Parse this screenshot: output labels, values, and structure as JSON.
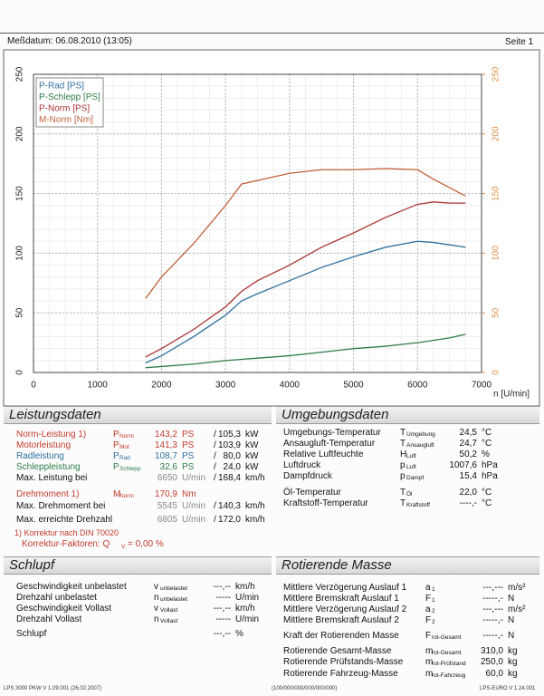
{
  "header": {
    "date": "Meßdatum: 06.08.2010 (13:05)",
    "page": "Seite 1"
  },
  "chart_data": {
    "type": "line",
    "x_label": "n [U/min]",
    "x": [
      1750,
      2000,
      2500,
      3000,
      3250,
      3500,
      4000,
      4500,
      5000,
      5500,
      6000,
      6250,
      6500,
      6750
    ],
    "series": [
      {
        "name": "P-Rad [PS]",
        "color": "#2e6f9e",
        "values": [
          8,
          14,
          30,
          48,
          60,
          66,
          77,
          88,
          97,
          105,
          110,
          109,
          107,
          105
        ]
      },
      {
        "name": "P-Schlepp [PS]",
        "color": "#2e7d4a",
        "values": [
          4,
          5,
          7,
          10,
          11,
          12,
          14,
          17,
          20,
          22,
          25,
          27,
          29,
          32
        ]
      },
      {
        "name": "P-Norm [PS]",
        "color": "#a83232",
        "values": [
          13,
          20,
          36,
          55,
          68,
          77,
          90,
          105,
          117,
          130,
          141,
          143,
          142,
          142
        ]
      },
      {
        "name": "M-Norm [Nm]",
        "color": "#c0603a",
        "axis": "y2",
        "values": [
          62,
          80,
          108,
          140,
          158,
          161,
          167,
          170,
          170,
          171,
          170,
          162,
          155,
          148
        ]
      }
    ],
    "xlim": [
      0,
      7000
    ],
    "xticks": [
      0,
      1000,
      2000,
      3000,
      4000,
      5000,
      6000,
      7000
    ],
    "ylim": [
      0,
      250
    ],
    "yticks": [
      0,
      50,
      100,
      150,
      200,
      250
    ],
    "y2lim": [
      0,
      250
    ],
    "y2ticks": [
      0,
      50,
      100,
      150,
      200,
      250
    ],
    "y2_color": "#e0904a",
    "grid": true,
    "legend": "upper left"
  },
  "leistungsdaten": {
    "title": "Leistungsdaten",
    "rows": [
      {
        "label": "Norm-Leistung 1)",
        "color": "#c0392b",
        "sym": "P",
        "sub": "Norm",
        "v1": "143,2",
        "u1": "PS",
        "sep": "/",
        "v2": "105,3",
        "u2": "kW"
      },
      {
        "label": "Motorleistung",
        "color": "#c0392b",
        "sym": "P",
        "sub": "Mot",
        "v1": "141,3",
        "u1": "PS",
        "sep": "/",
        "v2": "103,9",
        "u2": "kW"
      },
      {
        "label": "Radleistung",
        "color": "#2e6f9e",
        "sym": "P",
        "sub": "Rad",
        "v1": "108,7",
        "u1": "PS",
        "sep": "/",
        "v2": "80,0",
        "u2": "kW"
      },
      {
        "label": "Schleppleistung",
        "color": "#2e7d4a",
        "sym": "P",
        "sub": "Schlepp",
        "v1": "32,6",
        "u1": "PS",
        "sep": "/",
        "v2": "24,0",
        "u2": "kW"
      },
      {
        "label": "Max. Leistung bei",
        "v1": "6650",
        "u1": "U/min",
        "sep": "/",
        "v2": "168,4",
        "u2": "km/h"
      },
      {
        "label": "Drehmoment 1)",
        "color": "#c0392b",
        "sym": "M",
        "sub": "Norm",
        "v1": "170,9",
        "u1": "Nm"
      },
      {
        "label": "Max. Drehmoment bei",
        "v1": "5545",
        "u1": "U/min",
        "sep": "/",
        "v2": "140,3",
        "u2": "km/h"
      },
      {
        "label": "Max. erreichte Drehzahl",
        "v1": "6805",
        "u1": "U/min",
        "sep": "/",
        "v2": "172,0",
        "u2": "km/h"
      }
    ],
    "note": "1) Korrektur nach DIN 70020",
    "factor_label": "Korrektur-Faktoren: Q",
    "factor_sub": "V",
    "factor_value": "= 0,00 %"
  },
  "umgebungsdaten": {
    "title": "Umgebungsdaten",
    "rows": [
      {
        "label": "Umgebungs-Temperatur",
        "sym": "T",
        "sub": "Umgebung",
        "val": "24,5",
        "unit": "°C"
      },
      {
        "label": "Ansaugluft-Temperatur",
        "sym": "T",
        "sub": "Ansaugluft",
        "val": "24,7",
        "unit": "°C"
      },
      {
        "label": "Relative Luftfeuchte",
        "sym": "H",
        "sub": "Luft",
        "val": "50,2",
        "unit": "%"
      },
      {
        "label": "Luftdruck",
        "sym": "p",
        "sub": "Luft",
        "val": "1007,6",
        "unit": "hPa"
      },
      {
        "label": "Dampfdruck",
        "sym": "p",
        "sub": "Dampf",
        "val": "15,4",
        "unit": "hPa"
      },
      {
        "label": "Öl-Temperatur",
        "sym": "T",
        "sub": "Öl",
        "val": "22,0",
        "unit": "°C"
      },
      {
        "label": "Kraftstoff-Temperatur",
        "sym": "T",
        "sub": "Kraftstoff",
        "val": "----,-",
        "unit": "°C"
      }
    ]
  },
  "schlupf": {
    "title": "Schlupf",
    "rows": [
      {
        "label": "Geschwindigkeit unbelastet",
        "sym": "v",
        "sub": "unbelastet",
        "val": "---,--",
        "unit": "km/h"
      },
      {
        "label": "Drehzahl unbelastet",
        "sym": "n",
        "sub": "unbelastet",
        "val": "-----",
        "unit": "U/min"
      },
      {
        "label": "Geschwindigkeit Vollast",
        "sym": "v",
        "sub": "Vollast",
        "val": "---,--",
        "unit": "km/h"
      },
      {
        "label": "Drehzahl Vollast",
        "sym": "n",
        "sub": "Vollast",
        "val": "-----",
        "unit": "U/min"
      },
      {
        "label": "Schlupf",
        "val": "---,--",
        "unit": "%"
      }
    ]
  },
  "rotierende_masse": {
    "title": "Rotierende Masse",
    "rows": [
      {
        "label": "Mittlere Verzögerung Auslauf 1",
        "sym": "a",
        "sub": "1",
        "val": "---,---",
        "unit": "m/s²"
      },
      {
        "label": "Mittlere Bremskraft Auslauf 1",
        "sym": "F",
        "sub": "1",
        "val": "-----,-",
        "unit": "N"
      },
      {
        "label": "Mittlere Verzögerung Auslauf 2",
        "sym": "a",
        "sub": "2",
        "val": "---,---",
        "unit": "m/s²"
      },
      {
        "label": "Mittlere Bremskraft Auslauf 2",
        "sym": "F",
        "sub": "2",
        "val": "-----,-",
        "unit": "N"
      },
      {
        "label": "Kraft der Rotierenden Masse",
        "sym": "F",
        "sub": "rot-Gesamt",
        "val": "-----,-",
        "unit": "N"
      },
      {
        "label": "Rotierende Gesamt-Masse",
        "sym": "m",
        "sub": "rot-Gesamt",
        "val": "310,0",
        "unit": "kg"
      },
      {
        "label": "Rotierende Prüfstands-Masse",
        "sym": "m",
        "sub": "rot-Prüfstand",
        "val": "250,0",
        "unit": "kg"
      },
      {
        "label": "Rotierende Fahrzeug-Masse",
        "sym": "m",
        "sub": "rot-Fahrzeug",
        "val": "60,0",
        "unit": "kg"
      }
    ]
  },
  "footer": {
    "left": "LPS 3000 PKW V 1.09.001 (26.02.2007)",
    "center": "(100/000/000/000/000/000)",
    "right": "LPS-EURO V 1.24.001"
  }
}
